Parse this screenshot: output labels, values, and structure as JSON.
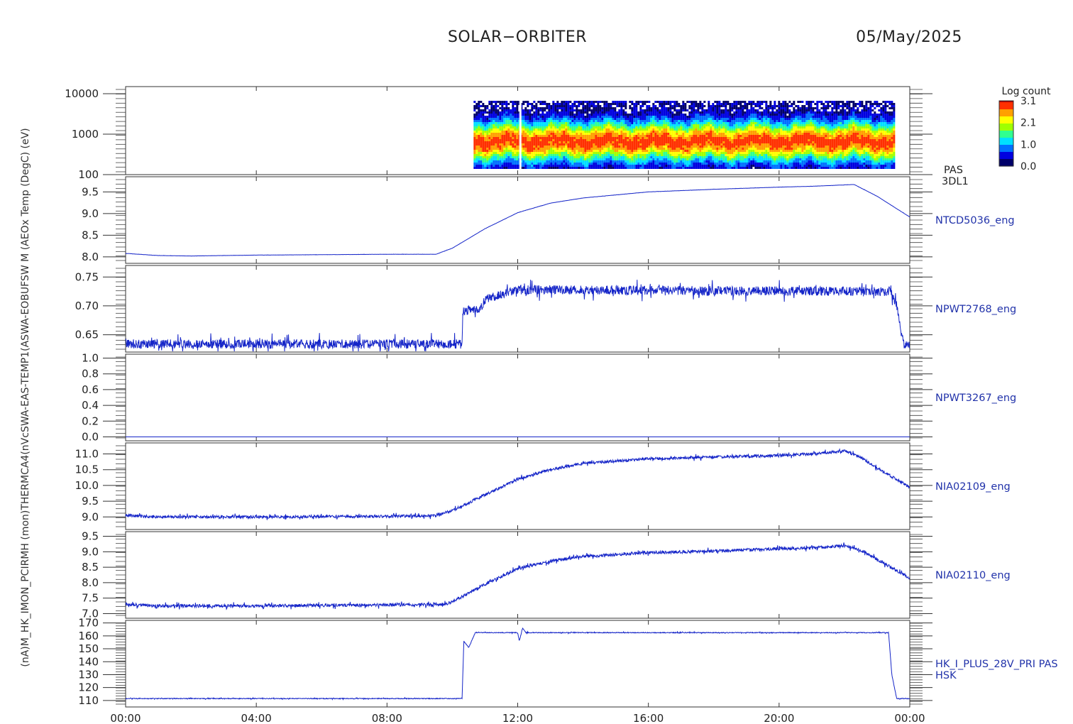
{
  "header": {
    "title": "SOLAR−ORBITER",
    "date": "05/May/2025"
  },
  "colorbar": {
    "title": "Log count",
    "ticks": [
      "3.1",
      "2.1",
      "1.0",
      "0.0"
    ],
    "range": [
      0.0,
      3.1
    ]
  },
  "x_axis": {
    "ticks": [
      "00:00",
      "04:00",
      "08:00",
      "12:00",
      "16:00",
      "20:00",
      "00:00"
    ],
    "range_hours": [
      0,
      24
    ]
  },
  "y_axis_overlay_label": "(nA)M_HK_IMON_PCIRMH (mon)THERMCA4(nVcSWA-EAS-TEMP1(ASWA-EOBUFSW M (AEOx Temp (DegC) (eV)",
  "chart_data": [
    {
      "type": "heatmap",
      "label": "PAS",
      "sublabel": "3DL1",
      "y_scale": "log",
      "ylim": [
        100,
        15000
      ],
      "yticks": [
        "10000",
        "1000",
        "100"
      ],
      "data_x_range_hours": [
        10.65,
        23.5
      ],
      "peak_energy_ev": 700,
      "colorscale": [
        "#00006a",
        "#0000e0",
        "#0070ff",
        "#00e0ff",
        "#30ff90",
        "#a0ff00",
        "#ffff00",
        "#ffa000",
        "#ff3000",
        "#b00000"
      ]
    },
    {
      "type": "line",
      "label": "NTCD5036_eng",
      "ylim": [
        7.85,
        9.85
      ],
      "yticks": [
        "9.5",
        "9.0",
        "8.5",
        "8.0"
      ],
      "x": [
        0,
        1,
        2,
        4,
        6,
        8,
        9.5,
        10,
        11,
        12,
        13,
        14,
        16,
        18,
        20,
        21,
        22.3,
        23,
        24
      ],
      "y": [
        8.08,
        8.03,
        8.02,
        8.04,
        8.05,
        8.06,
        8.06,
        8.2,
        8.65,
        9.02,
        9.24,
        9.36,
        9.5,
        9.56,
        9.61,
        9.63,
        9.67,
        9.4,
        8.92
      ],
      "noise": 0.002
    },
    {
      "type": "line",
      "label": "NPWT2768_eng",
      "ylim": [
        0.62,
        0.77
      ],
      "yticks": [
        "0.75",
        "0.70",
        "0.65"
      ],
      "x": [
        0,
        10.3,
        10.32,
        10.9,
        11,
        11.8,
        12,
        23.4,
        23.6,
        23.8,
        24
      ],
      "y": [
        0.634,
        0.634,
        0.69,
        0.697,
        0.712,
        0.725,
        0.728,
        0.725,
        0.7,
        0.636,
        0.634
      ],
      "noise": 0.008
    },
    {
      "type": "line",
      "label": "NPWT3267_eng",
      "ylim": [
        -0.05,
        1.05
      ],
      "yticks": [
        "1.0",
        "0.8",
        "0.6",
        "0.4",
        "0.2",
        "0.0"
      ],
      "x": [
        0,
        24
      ],
      "y": [
        0.0,
        0.0
      ],
      "noise": 0
    },
    {
      "type": "line",
      "label": "NIA02109_eng",
      "ylim": [
        8.6,
        11.35
      ],
      "yticks": [
        "11.0",
        "10.5",
        "10.0",
        "9.5",
        "9.0"
      ],
      "x": [
        0,
        1,
        4,
        8,
        9.5,
        10,
        11,
        12,
        13,
        14,
        16,
        18,
        20,
        21,
        22,
        22.5,
        23,
        24
      ],
      "y": [
        9.05,
        9.0,
        9.0,
        9.02,
        9.04,
        9.2,
        9.7,
        10.2,
        10.5,
        10.7,
        10.85,
        10.9,
        10.95,
        11.0,
        11.1,
        10.9,
        10.55,
        9.95
      ],
      "noise": 0.045
    },
    {
      "type": "line",
      "label": "NIA02110_eng",
      "ylim": [
        6.85,
        9.65
      ],
      "yticks": [
        "9.5",
        "9.0",
        "8.5",
        "8.0",
        "7.5",
        "7.0"
      ],
      "x": [
        0,
        1,
        4,
        8,
        9.8,
        10.3,
        11,
        12,
        13,
        14,
        16,
        18,
        20,
        21,
        22,
        22.5,
        23,
        24
      ],
      "y": [
        7.3,
        7.25,
        7.25,
        7.28,
        7.3,
        7.55,
        7.95,
        8.45,
        8.7,
        8.85,
        8.97,
        9.02,
        9.1,
        9.12,
        9.2,
        9.05,
        8.75,
        8.15
      ],
      "noise": 0.05
    },
    {
      "type": "line",
      "label": "HK_I_PLUS_28V_PRI PAS",
      "sublabel": "HSK",
      "ylim": [
        105,
        172
      ],
      "yticks": [
        "170",
        "160",
        "150",
        "140",
        "130",
        "120",
        "110"
      ],
      "x": [
        0,
        10.3,
        10.35,
        10.5,
        10.7,
        11,
        12,
        12.05,
        12.15,
        12.25,
        23.35,
        23.45,
        23.6,
        24
      ],
      "y": [
        111.5,
        111.5,
        156,
        151,
        162.5,
        162.5,
        162.5,
        156,
        166,
        162.5,
        162.5,
        130,
        111.5,
        111.5
      ],
      "noise": 0.3
    }
  ]
}
